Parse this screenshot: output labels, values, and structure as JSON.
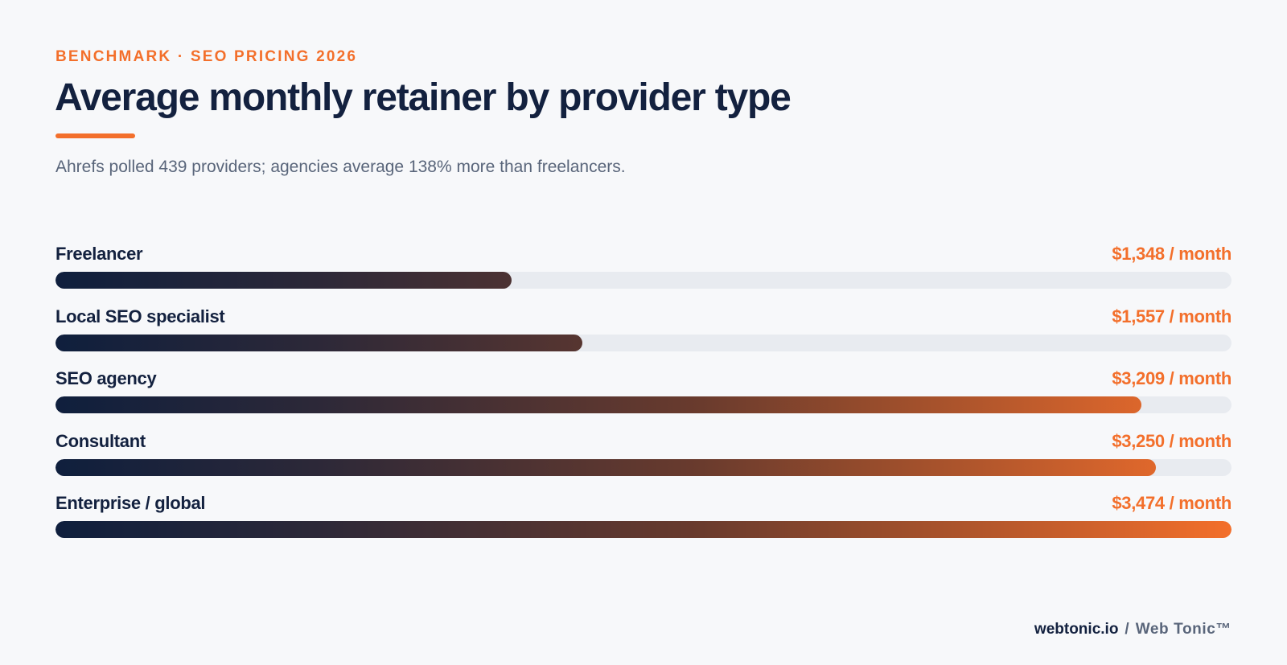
{
  "header": {
    "eyebrow": "BENCHMARK · SEO PRICING 2026",
    "title": "Average monthly retainer by provider type",
    "subtitle": "Ahrefs polled 439 providers; agencies average 138% more than freelancers."
  },
  "colors": {
    "accent": "#f36f2b",
    "navy": "#13213f",
    "track": "#e8ebf0",
    "background": "#f7f8fa"
  },
  "chart_data": {
    "type": "bar",
    "orientation": "horizontal",
    "title": "Average monthly retainer by provider type",
    "categories": [
      "Freelancer",
      "Local SEO specialist",
      "SEO agency",
      "Consultant",
      "Enterprise / global"
    ],
    "values": [
      1348,
      1557,
      3209,
      3250,
      3474
    ],
    "value_labels": [
      "$1,348 / month",
      "$1,557 / month",
      "$3,209 / month",
      "$3,250 / month",
      "$3,474 / month"
    ],
    "xlim": [
      0,
      3474
    ],
    "grid": false,
    "legend": "none"
  },
  "footer": {
    "site": "webtonic.io",
    "separator": "/",
    "brand": "Web Tonic™"
  }
}
